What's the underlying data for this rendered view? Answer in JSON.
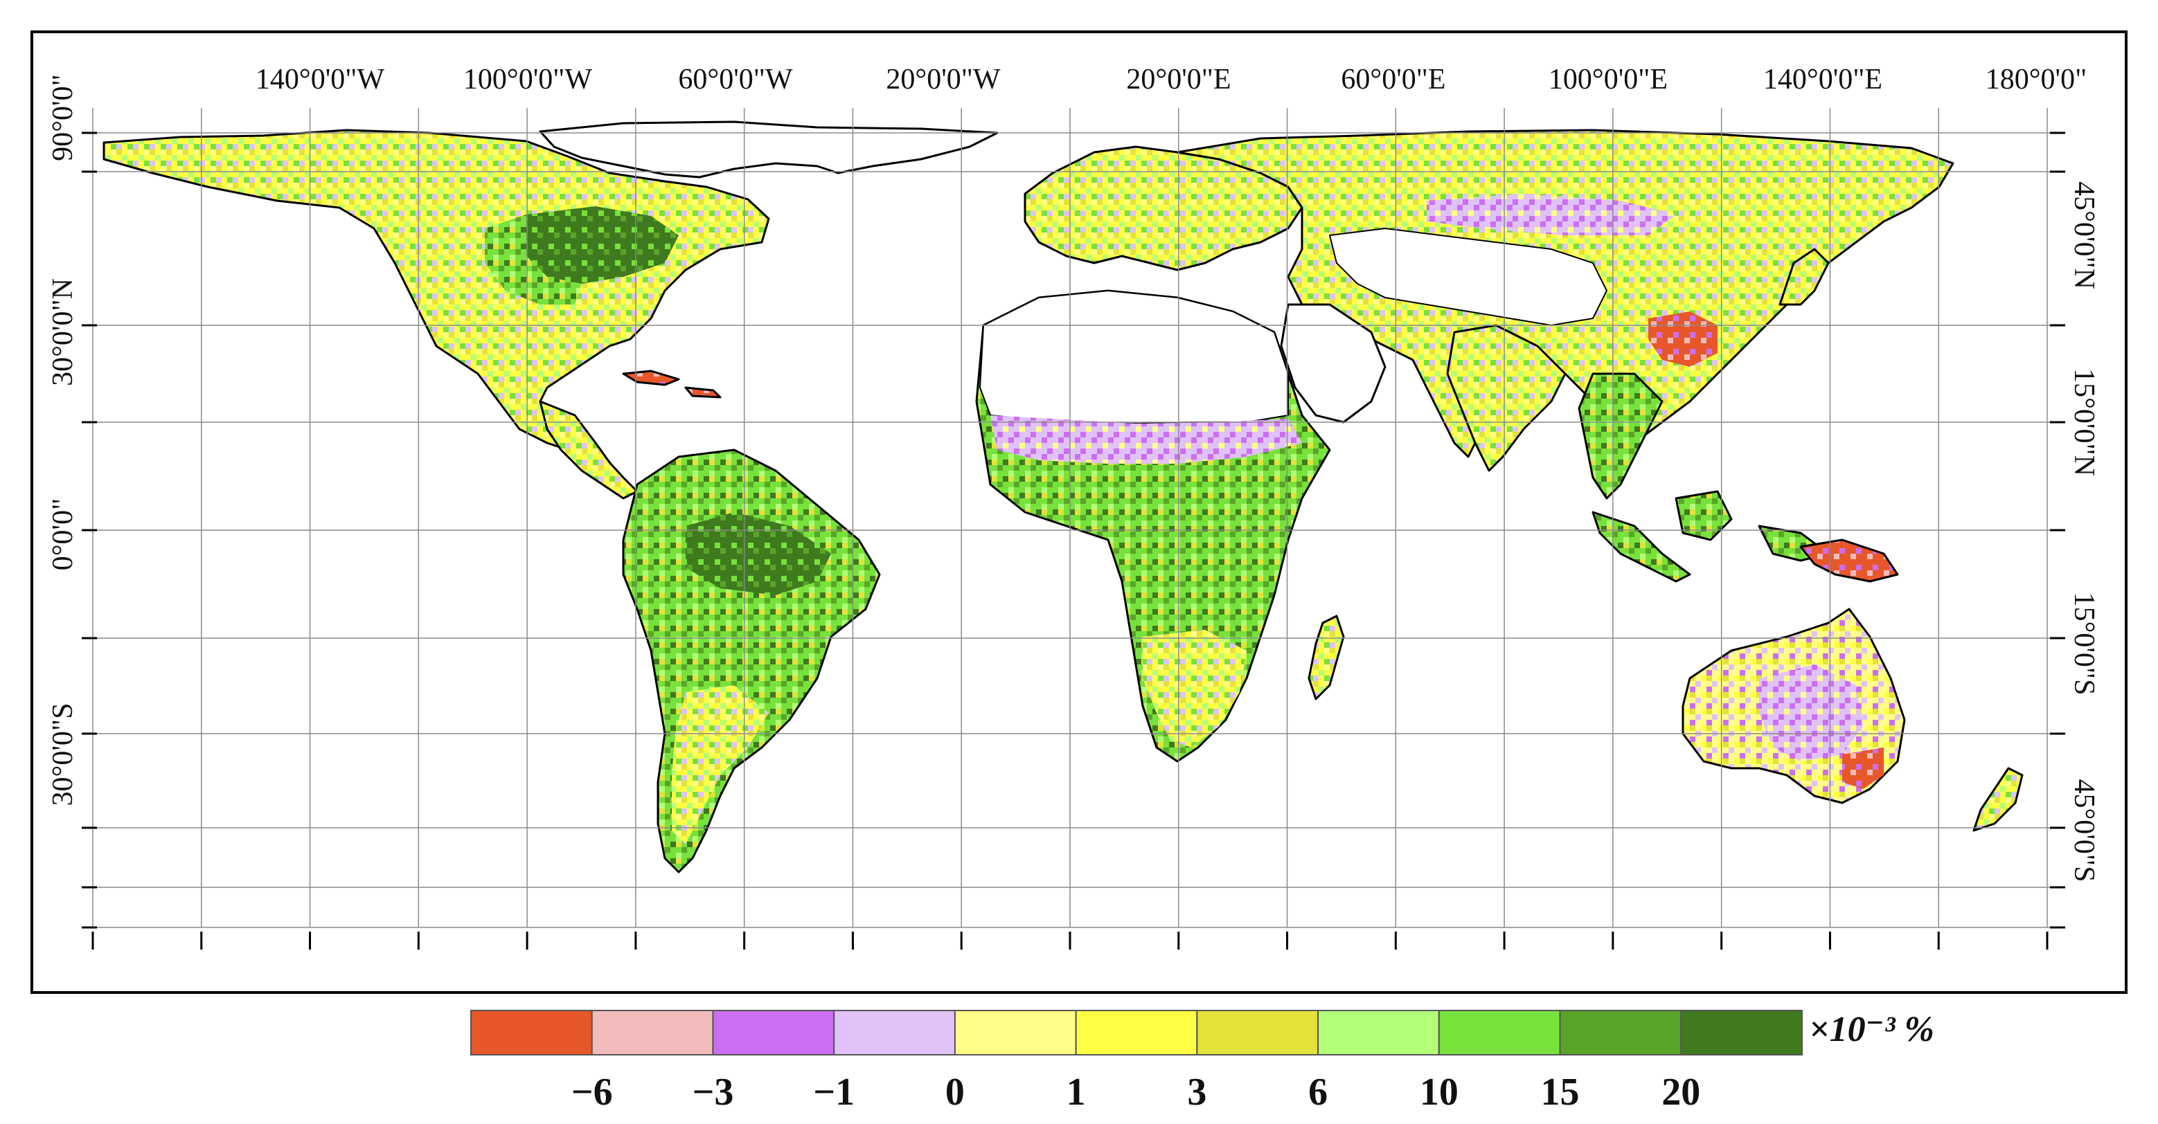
{
  "map": {
    "lon_labels": [
      "140°0'0\"W",
      "100°0'0\"W",
      "60°0'0\"W",
      "20°0'0\"W",
      "20°0'0\"E",
      "60°0'0\"E",
      "100°0'0\"E",
      "140°0'0\"E",
      "180°0'0\""
    ],
    "left_lat_labels": [
      "90°0'0\"",
      "30°0'0\"N",
      "0°0'0\"",
      "30°0'0\"S"
    ],
    "right_lat_labels": [
      "45°0'0\"N",
      "15°0'0\"N",
      "15°0'0\"S",
      "45°0'0\"S"
    ],
    "colors": {
      "ocean": "#ffffff",
      "arid_unclassified": "#ffffff",
      "boundary": "#000000",
      "graticule": "#808080"
    }
  },
  "legend": {
    "unit": "×10⁻³ %",
    "tick_labels": [
      "−6",
      "−3",
      "−1",
      "0",
      "1",
      "3",
      "6",
      "10",
      "15",
      "20"
    ],
    "bins": [
      {
        "color": "#e8572a"
      },
      {
        "color": "#f2bcbc"
      },
      {
        "color": "#cc6ef2"
      },
      {
        "color": "#e0c2f7"
      },
      {
        "color": "#ffff88"
      },
      {
        "color": "#ffff44"
      },
      {
        "color": "#e3e23a"
      },
      {
        "color": "#b3ff77"
      },
      {
        "color": "#77e23b"
      },
      {
        "color": "#5aa529"
      },
      {
        "color": "#3f7a1f"
      }
    ]
  }
}
